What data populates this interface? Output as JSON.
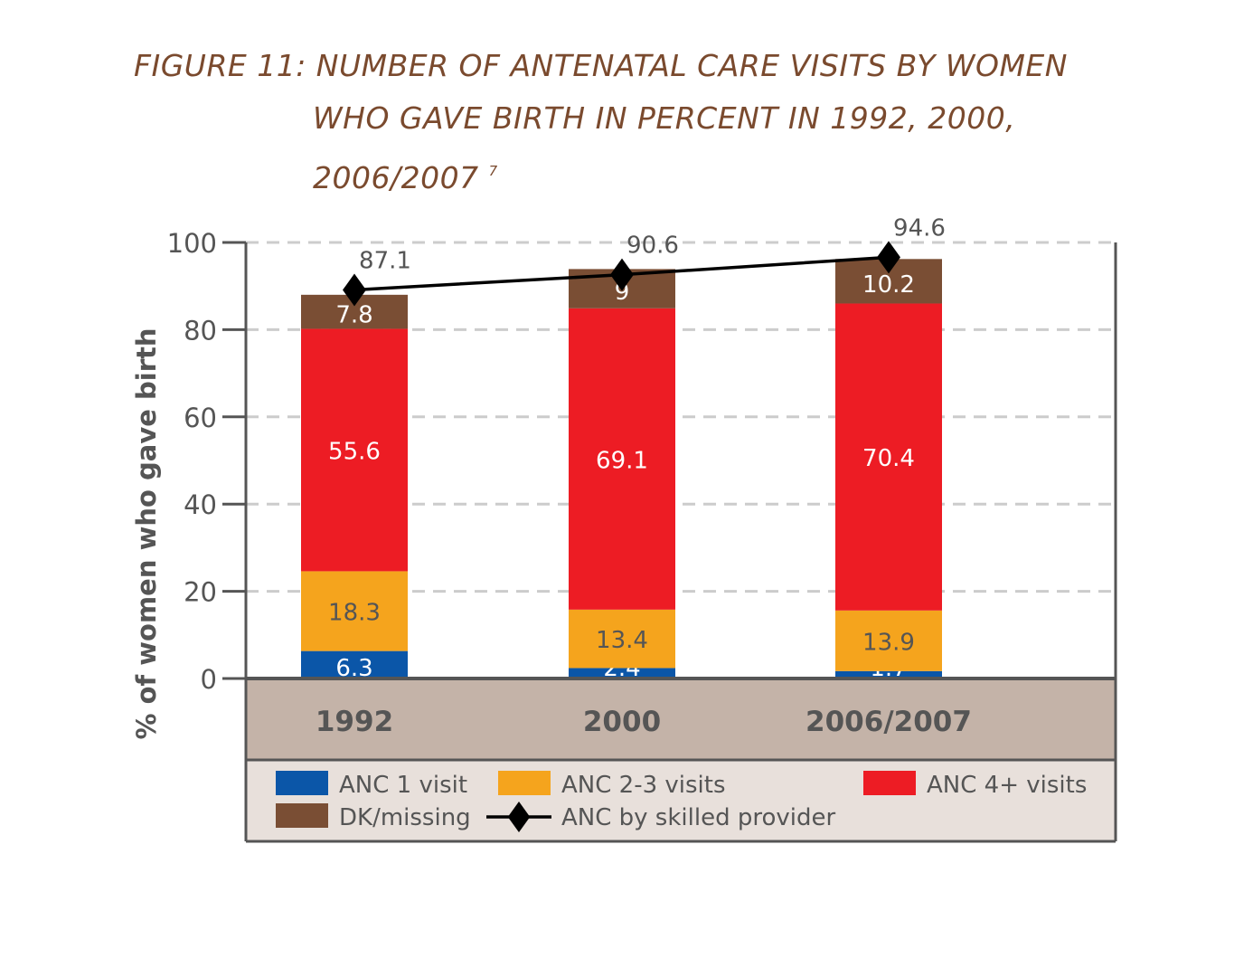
{
  "figure": {
    "title_line1": "FIGURE 11: NUMBER OF ANTENATAL CARE VISITS  BY WOMEN",
    "title_line2": "WHO GAVE BIRTH IN PERCENT IN 1992, 2000,",
    "title_line3": "2006/2007",
    "footnote": "7"
  },
  "chart_data": {
    "type": "bar",
    "stacked": true,
    "categories": [
      "1992",
      "2000",
      "2006/2007"
    ],
    "ylabel": "% of women who gave birth",
    "xlabel": "",
    "ylim": [
      0,
      100
    ],
    "yticks": [
      0,
      20,
      40,
      60,
      80,
      100
    ],
    "grid": "horizontal dashed",
    "legend_position": "bottom",
    "series": [
      {
        "name": "ANC 1 visit",
        "color": "#0b56a8",
        "label_color": "#ffffff",
        "values": [
          6.3,
          2.4,
          1.7
        ]
      },
      {
        "name": "ANC 2-3 visits",
        "color": "#f5a41d",
        "label_color": "#555555",
        "values": [
          18.3,
          13.4,
          13.9
        ]
      },
      {
        "name": "ANC 4+ visits",
        "color": "#ed1c24",
        "label_color": "#ffffff",
        "values": [
          55.6,
          69.1,
          70.4
        ]
      },
      {
        "name": "DK/missing",
        "color": "#7a4e34",
        "label_color": "#ffffff",
        "values": [
          7.8,
          9,
          10.2
        ]
      }
    ],
    "line_series": {
      "name": "ANC by skilled provider",
      "color": "#000000",
      "values": [
        87.1,
        90.6,
        94.6
      ]
    },
    "colors": {
      "category_band": "#c4b3a8",
      "legend_band": "#e8e0db",
      "axis": "#555555",
      "grid": "#cccccc",
      "title": "#7a4a2e"
    }
  }
}
